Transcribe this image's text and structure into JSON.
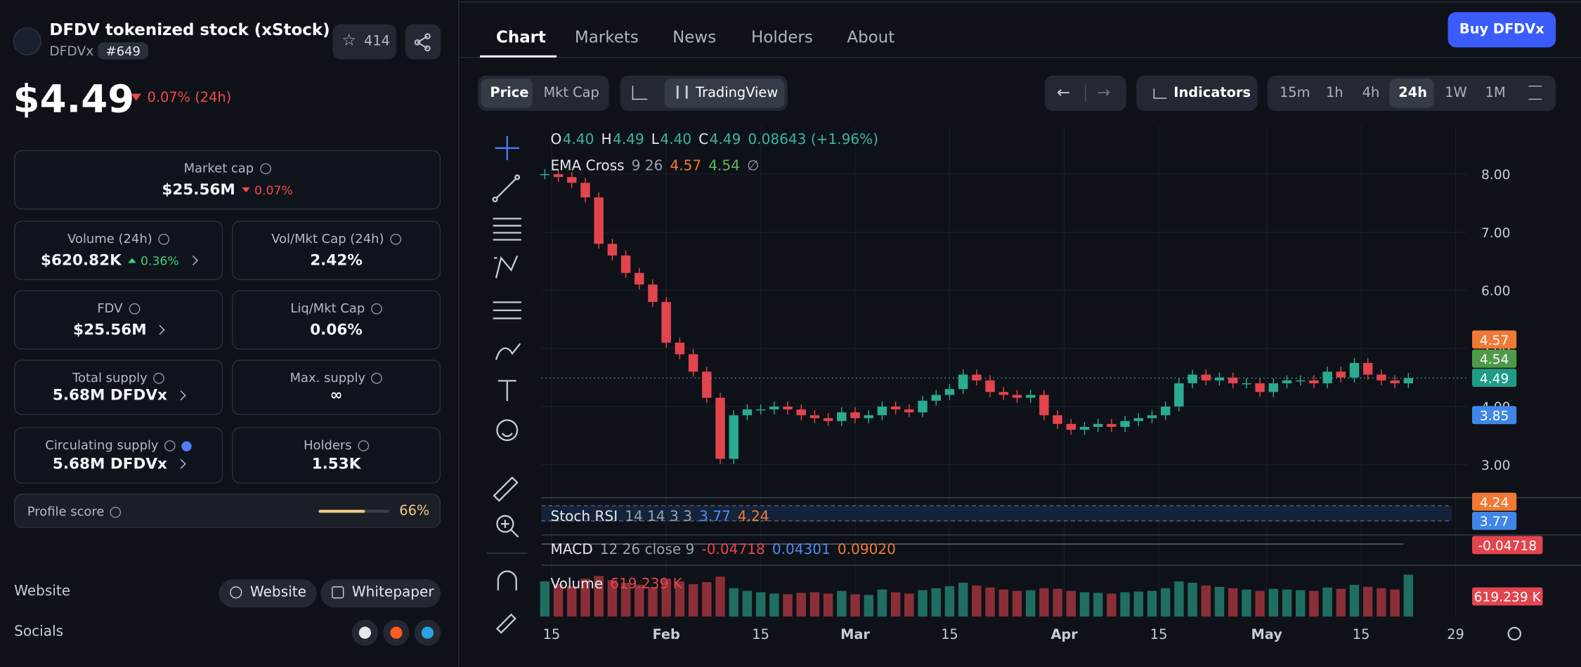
{
  "token": {
    "name": "DFDV tokenized stock (xStock)",
    "symbol": "DFDVx",
    "rank": "#649",
    "stars": "414",
    "price": "$4.49",
    "change": "0.07% (24h)"
  },
  "stats": [
    {
      "label": "Market cap",
      "value": "$25.56M",
      "change": "0.07%",
      "trend": "down"
    },
    {
      "label": "Volume (24h)",
      "value": "$620.82K",
      "change": "0.36%",
      "trend": "up"
    },
    {
      "label": "Vol/Mkt Cap (24h)",
      "value": "2.42%"
    },
    {
      "label": "FDV",
      "value": "$25.56M"
    },
    {
      "label": "Liq/Mkt Cap",
      "value": "0.06%"
    },
    {
      "label": "Total supply",
      "value": "5.68M DFDVx"
    },
    {
      "label": "Max. supply",
      "value": "∞"
    },
    {
      "label": "Circulating supply",
      "value": "5.68M DFDVx"
    },
    {
      "label": "Holders",
      "value": "1.53K"
    }
  ],
  "profile_score": {
    "label": "Profile score",
    "value": "66%"
  },
  "links": {
    "website_label": "Website",
    "buttons": [
      "Website",
      "Whitepaper"
    ],
    "socials_label": "Socials"
  },
  "tabs": [
    "Chart",
    "Markets",
    "News",
    "Holders",
    "About"
  ],
  "buy": "Buy DFDVx",
  "toolbar": {
    "modes": [
      "Price",
      "Mkt Cap"
    ],
    "tradingview": "TradingView",
    "indicators": "Indicators",
    "intervals": [
      "15m",
      "1h",
      "4h",
      "24h",
      "1W",
      "1M"
    ],
    "active_interval": "24h"
  },
  "chart_data": {
    "type": "candlestick",
    "legend": {
      "ohlc": [
        "O",
        "4.40",
        "H",
        "4.49",
        "L",
        "4.40",
        "C",
        "4.49",
        "0.08643 (+1.96%)"
      ],
      "ema": [
        "EMA Cross",
        "9 26",
        "4.57",
        "4.54",
        "∅"
      ],
      "stoch": [
        "Stoch RSI",
        "14 14 3 3",
        "3.77",
        "4.24"
      ],
      "macd": [
        "MACD",
        "12 26 close 9",
        "-0.04718",
        "0.04301",
        "0.09020"
      ],
      "volume": [
        "Volume",
        "619.239 K"
      ]
    },
    "price_tags": [
      "4.57",
      "4.54",
      "4.49",
      "3.85"
    ],
    "pane_tags": [
      "4.24",
      "3.77",
      "-0.04718",
      "619.239 K"
    ],
    "xlim": [
      1.5,
      138.7
    ],
    "xticks": [
      {
        "value": 3,
        "label": "15"
      },
      {
        "value": 20,
        "label": "Feb"
      },
      {
        "value": 34,
        "label": "15"
      },
      {
        "value": 48,
        "label": "Mar"
      },
      {
        "value": 62,
        "label": "15"
      },
      {
        "value": 79,
        "label": "Apr"
      },
      {
        "value": 93,
        "label": "15"
      },
      {
        "value": 109,
        "label": "May"
      },
      {
        "value": 123,
        "label": "15"
      },
      {
        "value": 137,
        "label": "29"
      }
    ],
    "ylim": [
      2.5,
      8.83
    ],
    "yticks": [
      {
        "value": 3,
        "label": "3.00"
      },
      {
        "value": 4,
        "label": "4.00"
      },
      {
        "value": 5,
        "label": "5.00"
      },
      {
        "value": 6,
        "label": "6.00"
      },
      {
        "value": 7,
        "label": "7.00"
      },
      {
        "value": 8,
        "label": "8.00"
      }
    ],
    "x": [
      2,
      4,
      6,
      8,
      10,
      12,
      14,
      16,
      18,
      20,
      22,
      24,
      26,
      28,
      30,
      32,
      34,
      36,
      38,
      40,
      42,
      44,
      46,
      48,
      50,
      52,
      54,
      56,
      58,
      60,
      62,
      64,
      66,
      68,
      70,
      72,
      74,
      76,
      78,
      80,
      82,
      84,
      86,
      88,
      90,
      92,
      94,
      96,
      98,
      100,
      102,
      104,
      106,
      108,
      110,
      112,
      114,
      116,
      118,
      120,
      122,
      124,
      126,
      128,
      130
    ],
    "close": [
      8.0,
      7.95,
      7.85,
      7.6,
      6.8,
      6.6,
      6.3,
      6.1,
      5.8,
      5.1,
      4.9,
      4.6,
      4.15,
      3.1,
      3.85,
      3.95,
      3.95,
      4.0,
      3.95,
      3.85,
      3.8,
      3.75,
      3.9,
      3.8,
      3.85,
      4.0,
      3.95,
      3.9,
      4.1,
      4.2,
      4.3,
      4.55,
      4.45,
      4.25,
      4.2,
      4.15,
      4.2,
      3.85,
      3.7,
      3.6,
      3.65,
      3.7,
      3.65,
      3.75,
      3.8,
      3.85,
      4.0,
      4.4,
      4.55,
      4.45,
      4.5,
      4.4,
      4.4,
      4.25,
      4.4,
      4.45,
      4.45,
      4.4,
      4.6,
      4.5,
      4.75,
      4.55,
      4.45,
      4.4,
      4.49
    ],
    "volume_ylim": [
      0,
      700
    ],
    "volume": [
      520,
      480,
      450,
      560,
      600,
      540,
      500,
      470,
      430,
      560,
      520,
      480,
      510,
      590,
      420,
      380,
      360,
      340,
      330,
      350,
      360,
      340,
      380,
      330,
      320,
      400,
      360,
      340,
      390,
      420,
      450,
      500,
      460,
      430,
      400,
      380,
      390,
      420,
      410,
      380,
      360,
      350,
      340,
      360,
      370,
      380,
      420,
      520,
      500,
      460,
      440,
      420,
      400,
      380,
      410,
      400,
      390,
      380,
      430,
      410,
      470,
      440,
      420,
      400,
      619.239
    ]
  }
}
